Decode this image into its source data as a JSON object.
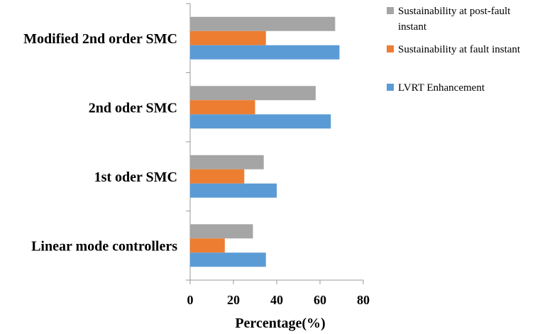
{
  "chart_data": {
    "type": "bar",
    "orientation": "horizontal",
    "categories": [
      "Linear mode controllers",
      "1st oder SMC",
      "2nd oder SMC",
      "Modified 2nd order SMC"
    ],
    "series": [
      {
        "name": "LVRT Enhancement",
        "color": "#5b9bd5",
        "values": [
          35,
          40,
          65,
          69
        ]
      },
      {
        "name": "Sustainability at fault instant",
        "color": "#ed7d31",
        "values": [
          16,
          25,
          30,
          35
        ]
      },
      {
        "name": "Sustainability at post-fault instant",
        "color": "#a5a5a5",
        "values": [
          29,
          34,
          58,
          67
        ]
      }
    ],
    "legend_order": [
      2,
      1,
      0
    ],
    "legend_lines": [
      [
        "Sustainability at post-fault",
        "instant"
      ],
      [
        "Sustainability at fault instant"
      ],
      [
        "LVRT Enhancement"
      ]
    ],
    "title": "",
    "xlabel": "Percentage(%)",
    "ylabel": "",
    "xlim": [
      0,
      80
    ],
    "xticks": [
      "0",
      "20",
      "40",
      "60",
      "80"
    ],
    "grid": false,
    "legend_position": "right"
  }
}
